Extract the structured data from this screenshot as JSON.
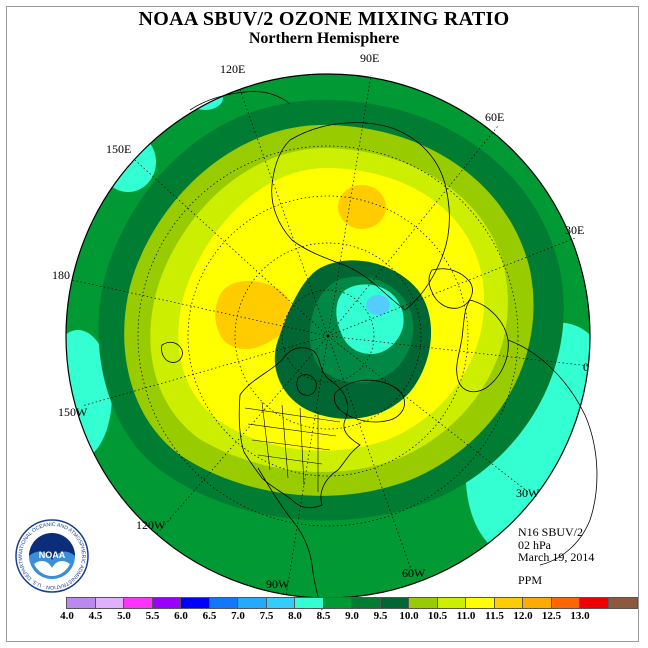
{
  "header": {
    "title": "NOAA SBUV/2 OZONE MIXING RATIO",
    "subtitle": "Northern Hemisphere"
  },
  "map": {
    "projection": "north polar stereographic",
    "longitude_labels": {
      "lon_120e": "120E",
      "lon_90e": "90E",
      "lon_60e": "60E",
      "lon_150e": "150E",
      "lon_30e": "30E",
      "lon_180": "180",
      "lon_0": "0",
      "lon_150w": "150W",
      "lon_30w": "30W",
      "lon_120w": "120W",
      "lon_60w": "60W",
      "lon_90w": "90W"
    },
    "field_colors": {
      "outer_ring": "#009933",
      "ring_2": "#007d32",
      "ring_3": "#99cc00",
      "ring_4": "#ccee00",
      "core": "#ffff00",
      "maxima": "#ffcc00",
      "vortex": "#006633",
      "vortex_inner": "#008844",
      "minimum": "#33ffd2",
      "minimum_core": "#55ccff"
    }
  },
  "info": {
    "instrument": "N16 SBUV/2",
    "level": "02 hPa",
    "date": "March 19, 2014",
    "units": "PPM"
  },
  "logo": {
    "text": "NOAA",
    "ring_text": "NATIONAL OCEANIC AND ATMOSPHERIC ADMINISTRATION · U.S. DEPARTMENT OF COMMERCE"
  },
  "color_scale": {
    "labels": [
      "4.0",
      "4.5",
      "5.0",
      "5.5",
      "6.0",
      "6.5",
      "7.0",
      "7.5",
      "8.0",
      "8.5",
      "9.0",
      "9.5",
      "10.0",
      "10.5",
      "11.0",
      "11.5",
      "12.0",
      "12.5",
      "13.0"
    ],
    "colors": [
      "#bb88ee",
      "#e0b0ff",
      "#ff33ff",
      "#9900ff",
      "#0000ff",
      "#1177ff",
      "#22aaff",
      "#33ccff",
      "#33ffd2",
      "#009933",
      "#007d32",
      "#006633",
      "#99cc00",
      "#ccee00",
      "#ffff00",
      "#ffcc00",
      "#ffaa00",
      "#ff6600",
      "#ee0000",
      "#8b5a3c"
    ]
  }
}
